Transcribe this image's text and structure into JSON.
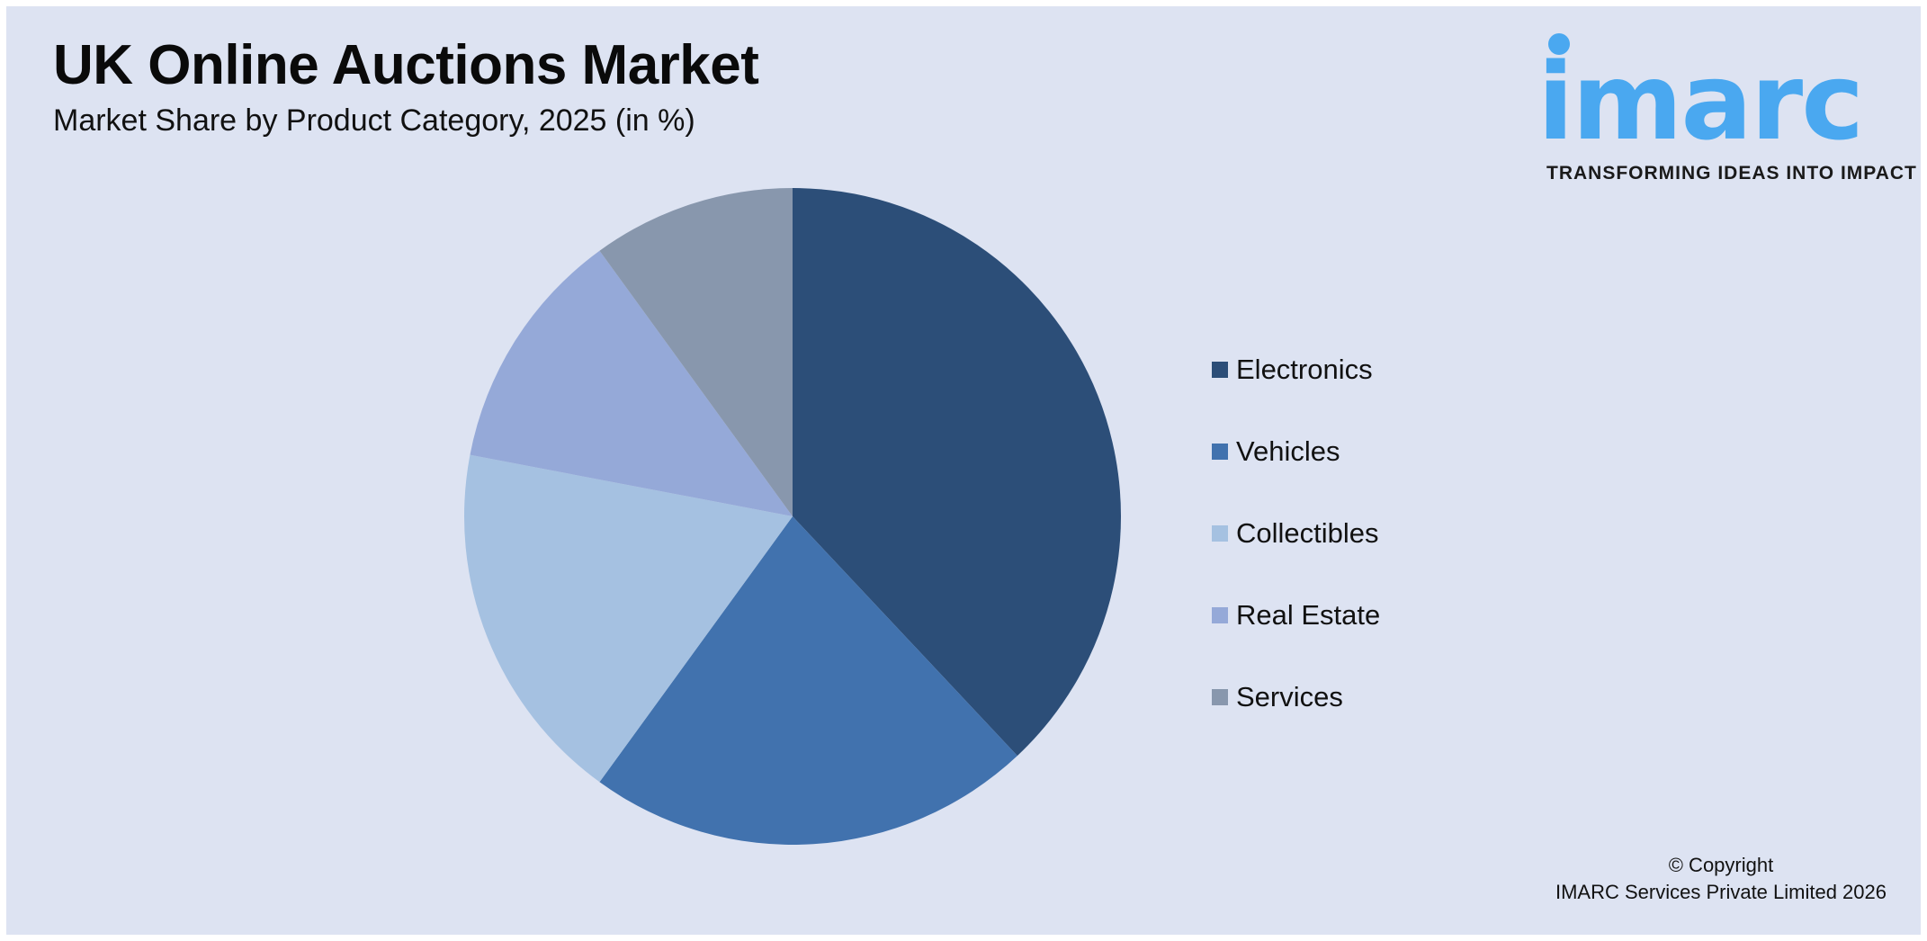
{
  "header": {
    "title": "UK Online Auctions Market",
    "subtitle": "Market Share by Product Category, 2025 (in %)"
  },
  "logo": {
    "wordmark": "imarc",
    "tagline": "TRANSFORMING IDEAS INTO IMPACT",
    "color": "#4aa8f0"
  },
  "legend": {
    "items": [
      {
        "label": "Electronics",
        "color": "#2c4e78"
      },
      {
        "label": "Vehicles",
        "color": "#4172ae"
      },
      {
        "label": "Collectibles",
        "color": "#a5c1e1"
      },
      {
        "label": "Real Estate",
        "color": "#95a9d8"
      },
      {
        "label": "Services",
        "color": "#8897ad"
      }
    ]
  },
  "footer": {
    "copyright_line1": "© Copyright",
    "copyright_line2": "IMARC Services Private Limited 2026"
  },
  "colors": {
    "background": "#dde3f2",
    "text": "#111111"
  },
  "chart_data": {
    "type": "pie",
    "title": "UK Online Auctions Market",
    "subtitle": "Market Share by Product Category, 2025 (in %)",
    "categories": [
      "Electronics",
      "Vehicles",
      "Collectibles",
      "Real Estate",
      "Services"
    ],
    "values": [
      38,
      22,
      18,
      12,
      10
    ],
    "colors": [
      "#2c4e78",
      "#4172ae",
      "#a5c1e1",
      "#95a9d8",
      "#8897ad"
    ],
    "start_angle": "12 o'clock",
    "direction": "clockwise",
    "legend_position": "right",
    "data_labels": false
  }
}
